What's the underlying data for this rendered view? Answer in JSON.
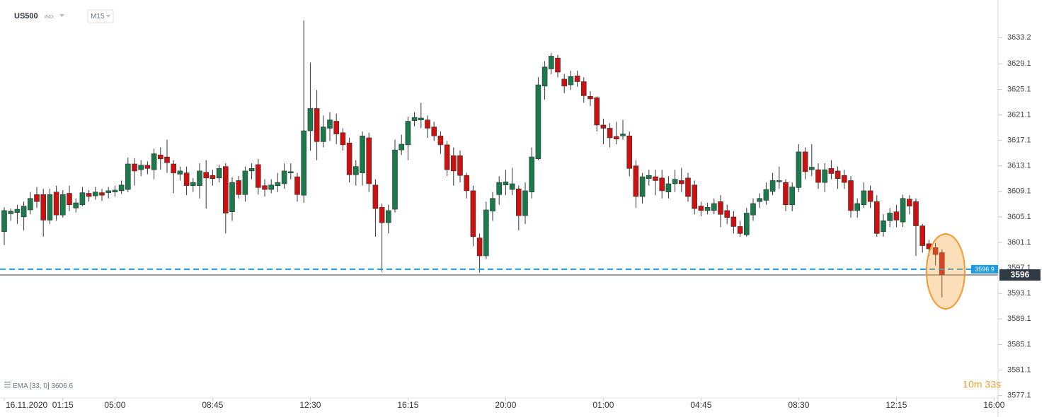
{
  "chart_data": {
    "type": "candlestick",
    "symbol": "US500",
    "market": "IND",
    "interval": "M15",
    "indicator": {
      "name": "EMA",
      "params": "[33, 0]",
      "value": 3606.6
    },
    "countdown": "10m 33s",
    "up_color": "#1b7a4c",
    "down_color": "#cc1111",
    "ylim": [
      3575.4,
      3639.1
    ],
    "yticks": [
      3633.2,
      3629.1,
      3625.1,
      3621.1,
      3617.1,
      3613.1,
      3609.1,
      3605.1,
      3601.1,
      3597.1,
      3593.1,
      3589.1,
      3585.1,
      3581.1,
      3577.1
    ],
    "price_lines": [
      {
        "value": 3596.9,
        "color": "#1e9be0",
        "style": "dashed"
      },
      {
        "value": 3596.0,
        "color": "#2f3a45",
        "style": "solid"
      }
    ],
    "categories": [
      "16.11.2020",
      null,
      null,
      null,
      null,
      null,
      null,
      null,
      null,
      "01:15",
      null,
      null,
      null,
      null,
      null,
      null,
      null,
      "05:00",
      null,
      null,
      null,
      null,
      null,
      null,
      null,
      null,
      null,
      null,
      null,
      null,
      null,
      null,
      "08:45",
      null,
      null,
      null,
      null,
      null,
      null,
      null,
      null,
      null,
      null,
      null,
      null,
      null,
      null,
      "12:30",
      null,
      null,
      null,
      null,
      null,
      null,
      null,
      null,
      null,
      null,
      null,
      null,
      null,
      null,
      "16:15",
      null,
      null,
      null,
      null,
      null,
      null,
      null,
      null,
      null,
      null,
      null,
      null,
      null,
      null,
      "20:00",
      null,
      null,
      null,
      null,
      null,
      null,
      null,
      null,
      null,
      null,
      null,
      null,
      null,
      null,
      "01:00",
      null,
      null,
      null,
      null,
      null,
      null,
      null,
      null,
      null,
      null,
      null,
      null,
      null,
      null,
      "04:45",
      null,
      null,
      null,
      null,
      null,
      null,
      null,
      null,
      null,
      null,
      null,
      null,
      null,
      null,
      "08:30",
      null,
      null,
      null,
      null,
      null,
      null,
      null,
      null,
      null,
      null,
      null,
      null,
      null,
      null,
      "12:15",
      null,
      null,
      null,
      null,
      null,
      null,
      null,
      null,
      null,
      null,
      null,
      null,
      null,
      null,
      "16:00"
    ],
    "open": [
      3602.8,
      3605.6,
      3605.8,
      3605.1,
      3606.2,
      3608.6,
      3608.6,
      3604.6,
      3609.0,
      3605.4,
      3608.8,
      3606.5,
      3607.0,
      3608.8,
      3608.4,
      3608.9,
      3608.9,
      3609.0,
      3609.2,
      3609.4,
      3613.4,
      3612.5,
      3613.2,
      3612.5,
      3614.8,
      3614.5,
      3613.4,
      3611.8,
      3612.0,
      3610.0,
      3610.0,
      3612.1,
      3611.6,
      3611.2,
      3613.0,
      3605.9,
      3610.8,
      3608.6,
      3612.3,
      3613.3,
      3610.0,
      3609.4,
      3610.0,
      3610.3,
      3612.0,
      3611.4,
      3608.5,
      3618.6,
      3622.1,
      3616.9,
      3619.0,
      3620.1,
      3618.3,
      3616.7,
      3611.7,
      3612.0,
      3617.5,
      3610.1,
      3606.6,
      3604.2,
      3606.3,
      3615.6,
      3616.4,
      3620.2,
      3620.3,
      3620.3,
      3619.2,
      3617.8,
      3616.4,
      3614.7,
      3614.7,
      3611.6,
      3609.2,
      3601.8,
      3599.0,
      3606.0,
      3608.6,
      3610.1,
      3609.4,
      3609.5,
      3605.3,
      3609.0,
      3614.2,
      3625.6,
      3628.3,
      3630.0,
      3626.7,
      3625.8,
      3627.2,
      3626.3,
      3624.0,
      3623.8,
      3619.5,
      3619.0,
      3617.7,
      3617.8,
      3617.8,
      3613.1,
      3608.3,
      3611.1,
      3611.4,
      3611.2,
      3609.0,
      3610.3,
      3610.8,
      3611.2,
      3610.1,
      3606.8,
      3606.1,
      3606.1,
      3607.5,
      3606.1,
      3605.1,
      3603.6,
      3602.3,
      3605.4,
      3607.5,
      3607.7,
      3609.1,
      3610.6,
      3610.5,
      3607.0,
      3609.7,
      3615.3,
      3612.5,
      3612.5,
      3610.5,
      3612.7,
      3612.3,
      3611.6,
      3610.8,
      3606.1,
      3607.0,
      3609.2,
      3607.5,
      3602.8,
      3604.5,
      3605.9,
      3604.3,
      3607.9,
      3607.5,
      3603.7,
      3600.9,
      3600.3,
      3599.5,
      null,
      null,
      null,
      null,
      null,
      null,
      null,
      null
    ],
    "high": [
      3606.6,
      3606.4,
      3607.0,
      3607.5,
      3609.0,
      3609.8,
      3609.5,
      3609.5,
      3610.0,
      3609.3,
      3610.0,
      3608.0,
      3609.8,
      3609.3,
      3609.8,
      3609.5,
      3609.8,
      3610.0,
      3610.8,
      3614.4,
      3614.3,
      3614.0,
      3613.8,
      3615.8,
      3616.0,
      3617.2,
      3614.0,
      3613.0,
      3613.0,
      3611.2,
      3613.5,
      3614.0,
      3612.5,
      3613.3,
      3613.5,
      3611.3,
      3611.5,
      3613.0,
      3613.5,
      3614.2,
      3611.0,
      3611.0,
      3612.0,
      3613.5,
      3613.5,
      3612.0,
      3635.9,
      3629.3,
      3625.0,
      3621.0,
      3621.5,
      3621.3,
      3619.0,
      3617.5,
      3614.0,
      3618.5,
      3618.3,
      3611.0,
      3607.2,
      3607.0,
      3617.2,
      3618.0,
      3620.8,
      3621.5,
      3623.0,
      3621.0,
      3620.0,
      3618.5,
      3617.0,
      3616.0,
      3615.5,
      3612.0,
      3610.0,
      3602.5,
      3607.5,
      3609.0,
      3611.5,
      3612.5,
      3612.8,
      3610.0,
      3610.5,
      3616.0,
      3627.0,
      3629.5,
      3630.8,
      3630.5,
      3627.5,
      3628.0,
      3628.0,
      3627.0,
      3624.8,
      3624.0,
      3620.5,
      3619.8,
      3620.0,
      3620.3,
      3618.5,
      3614.0,
      3612.0,
      3612.5,
      3612.5,
      3612.5,
      3611.5,
      3612.5,
      3612.8,
      3612.0,
      3610.8,
      3607.5,
      3607.3,
      3608.0,
      3608.5,
      3607.0,
      3606.0,
      3604.5,
      3606.5,
      3608.0,
      3608.8,
      3610.5,
      3612.0,
      3613.0,
      3611.0,
      3610.5,
      3616.5,
      3616.0,
      3616.5,
      3613.5,
      3613.5,
      3614.0,
      3613.0,
      3612.5,
      3611.5,
      3608.0,
      3610.5,
      3610.0,
      3608.5,
      3605.5,
      3606.5,
      3607.0,
      3608.6,
      3608.5,
      3608.0,
      3604.0,
      3601.5,
      3601.0,
      3600.0,
      null,
      null,
      null,
      null,
      null,
      null,
      null,
      null
    ],
    "low": [
      3600.7,
      3604.5,
      3604.0,
      3603.0,
      3605.5,
      3606.5,
      3602.0,
      3604.0,
      3604.5,
      3605.0,
      3606.0,
      3605.8,
      3606.8,
      3607.5,
      3607.8,
      3607.6,
      3608.0,
      3608.3,
      3608.7,
      3609.0,
      3610.0,
      3611.5,
      3611.8,
      3611.0,
      3612.5,
      3612.0,
      3608.8,
      3610.8,
      3608.5,
      3609.0,
      3608.0,
      3606.4,
      3610.0,
      3610.5,
      3602.5,
      3604.5,
      3608.0,
      3607.5,
      3611.0,
      3608.6,
      3608.3,
      3608.8,
      3609.0,
      3609.5,
      3611.0,
      3607.5,
      3607.3,
      3615.5,
      3614.0,
      3616.0,
      3617.0,
      3616.5,
      3615.5,
      3610.5,
      3610.0,
      3610.0,
      3609.0,
      3602.0,
      3596.5,
      3602.5,
      3605.8,
      3614.8,
      3614.0,
      3619.3,
      3619.0,
      3617.5,
      3617.0,
      3615.0,
      3611.5,
      3610.0,
      3610.5,
      3608.0,
      3600.5,
      3596.4,
      3598.5,
      3604.5,
      3607.0,
      3608.5,
      3608.5,
      3603.0,
      3604.0,
      3608.0,
      3614.0,
      3623.5,
      3627.5,
      3627.0,
      3624.5,
      3625.0,
      3625.5,
      3623.0,
      3622.5,
      3618.5,
      3616.5,
      3616.0,
      3616.5,
      3617.2,
      3611.5,
      3606.5,
      3607.2,
      3610.0,
      3608.5,
      3608.0,
      3608.0,
      3609.0,
      3609.0,
      3607.5,
      3605.5,
      3605.2,
      3605.5,
      3605.5,
      3603.5,
      3604.0,
      3602.5,
      3602.0,
      3602.0,
      3604.5,
      3606.5,
      3607.0,
      3608.5,
      3609.5,
      3606.0,
      3606.0,
      3609.0,
      3611.0,
      3611.5,
      3609.5,
      3609.0,
      3611.0,
      3609.5,
      3609.5,
      3605.0,
      3605.0,
      3606.5,
      3606.5,
      3602.0,
      3602.0,
      3603.5,
      3603.5,
      3603.5,
      3605.5,
      3599.0,
      3599.5,
      3599.0,
      3597.5,
      3592.5,
      null,
      null,
      null,
      null,
      null,
      null,
      null,
      null
    ],
    "close": [
      3606.1,
      3606.0,
      3606.3,
      3606.8,
      3608.0,
      3607.5,
      3604.6,
      3608.6,
      3605.4,
      3608.6,
      3607.0,
      3607.3,
      3608.9,
      3608.3,
      3609.0,
      3608.5,
      3609.2,
      3609.3,
      3610.1,
      3613.4,
      3612.3,
      3613.2,
      3612.7,
      3615.0,
      3614.2,
      3613.6,
      3612.0,
      3612.3,
      3610.0,
      3610.5,
      3612.3,
      3611.2,
      3611.1,
      3612.7,
      3605.7,
      3610.5,
      3608.6,
      3612.3,
      3612.7,
      3609.7,
      3609.4,
      3610.1,
      3610.5,
      3612.3,
      3612.2,
      3608.6,
      3618.6,
      3622.1,
      3616.9,
      3619.2,
      3620.3,
      3618.1,
      3616.4,
      3611.7,
      3613.0,
      3617.8,
      3610.3,
      3606.4,
      3604.2,
      3606.1,
      3615.6,
      3616.5,
      3620.1,
      3620.7,
      3620.6,
      3619.0,
      3617.8,
      3616.4,
      3612.5,
      3612.3,
      3611.6,
      3609.2,
      3602.0,
      3599.0,
      3606.2,
      3608.0,
      3610.5,
      3610.6,
      3610.3,
      3605.3,
      3609.2,
      3614.5,
      3625.8,
      3628.6,
      3630.3,
      3627.8,
      3625.6,
      3627.1,
      3626.3,
      3624.1,
      3623.6,
      3619.5,
      3619.0,
      3617.5,
      3617.3,
      3618.1,
      3612.7,
      3608.3,
      3611.4,
      3611.6,
      3610.8,
      3609.2,
      3610.3,
      3611.0,
      3610.3,
      3608.3,
      3606.4,
      3606.1,
      3606.6,
      3607.2,
      3605.5,
      3605.0,
      3603.6,
      3602.5,
      3605.7,
      3607.2,
      3608.0,
      3609.4,
      3610.8,
      3610.8,
      3607.0,
      3609.8,
      3615.3,
      3612.2,
      3612.9,
      3610.5,
      3612.5,
      3611.9,
      3611.1,
      3610.5,
      3606.1,
      3607.2,
      3609.2,
      3607.5,
      3602.5,
      3604.5,
      3605.7,
      3604.6,
      3608.0,
      3606.8,
      3603.7,
      3600.6,
      3600.1,
      3599.2,
      3596.0,
      null,
      null,
      null,
      null,
      null,
      null,
      null,
      null
    ]
  }
}
